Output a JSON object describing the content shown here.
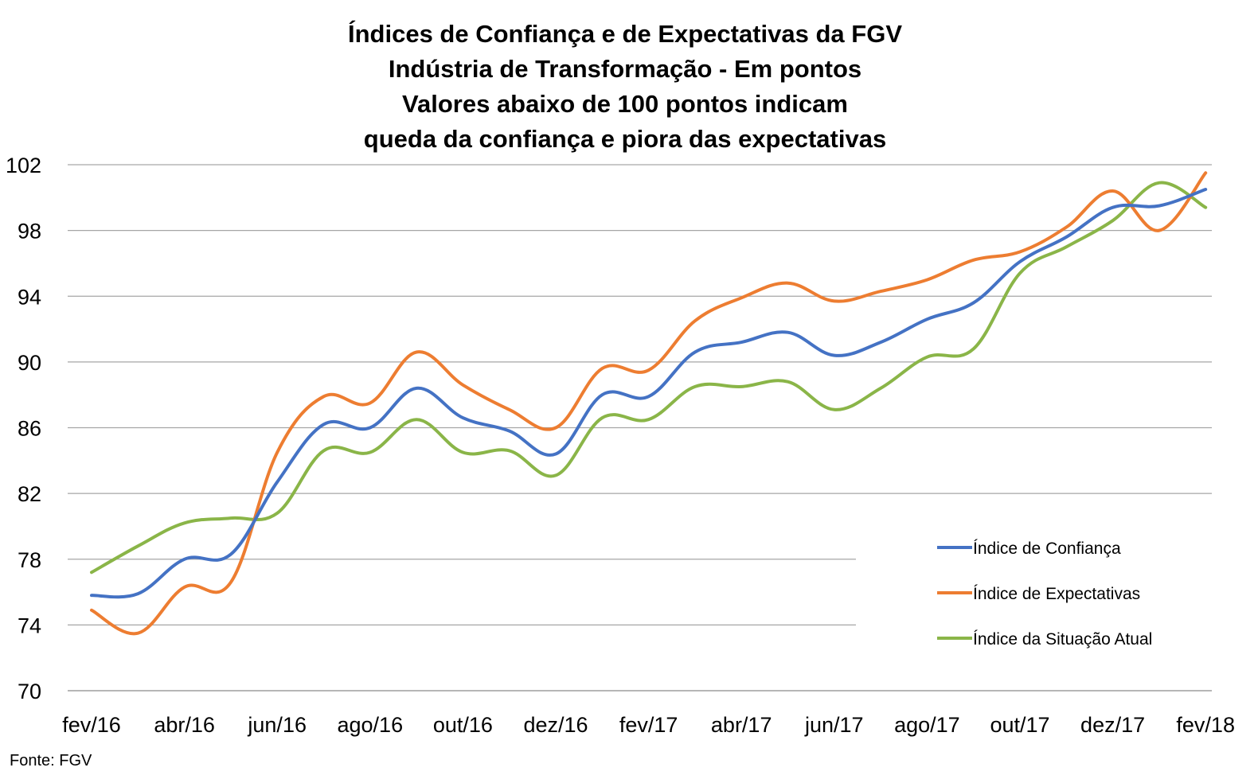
{
  "chart_data": {
    "type": "line",
    "title": [
      "Índices de Confiança e de Expectativas da FGV",
      "Indústria de Transformação - Em pontos",
      "Valores abaixo de 100 pontos indicam",
      "queda da confiança e piora das expectativas"
    ],
    "x": [
      "fev/16",
      "mar/16",
      "abr/16",
      "mai/16",
      "jun/16",
      "jul/16",
      "ago/16",
      "set/16",
      "out/16",
      "nov/16",
      "dez/16",
      "jan/17",
      "fev/17",
      "mar/17",
      "abr/17",
      "mai/17",
      "jun/17",
      "jul/17",
      "ago/17",
      "set/17",
      "out/17",
      "nov/17",
      "dez/17",
      "jan/18",
      "fev/18"
    ],
    "x_tick_labels": [
      "fev/16",
      "abr/16",
      "jun/16",
      "ago/16",
      "out/16",
      "dez/16",
      "fev/17",
      "abr/17",
      "jun/17",
      "ago/17",
      "out/17",
      "dez/17",
      "fev/18"
    ],
    "y_ticks": [
      70,
      74,
      78,
      82,
      86,
      90,
      94,
      98,
      102
    ],
    "ylim": [
      70,
      102
    ],
    "grid": true,
    "legend_position": "right",
    "series": [
      {
        "name": "Índice de Confiança",
        "color": "#4472C4",
        "values": [
          75.8,
          75.9,
          78.0,
          78.3,
          82.7,
          86.2,
          86.0,
          88.4,
          86.6,
          85.8,
          84.4,
          88.0,
          87.9,
          90.6,
          91.2,
          91.8,
          90.4,
          91.2,
          92.6,
          93.6,
          96.1,
          97.6,
          99.4,
          99.5,
          100.5
        ]
      },
      {
        "name": "Índice de Expectativas",
        "color": "#ED7D31",
        "values": [
          74.9,
          73.5,
          76.3,
          76.6,
          84.5,
          87.9,
          87.5,
          90.6,
          88.6,
          87.1,
          86.0,
          89.6,
          89.5,
          92.5,
          93.9,
          94.8,
          93.7,
          94.3,
          95.0,
          96.2,
          96.7,
          98.2,
          100.4,
          98.0,
          101.5
        ]
      },
      {
        "name": "Índice da Situação Atual",
        "color": "#8AB548",
        "values": [
          77.2,
          78.8,
          80.2,
          80.5,
          80.8,
          84.6,
          84.5,
          86.5,
          84.5,
          84.6,
          83.1,
          86.6,
          86.5,
          88.5,
          88.5,
          88.8,
          87.1,
          88.4,
          90.3,
          90.8,
          95.4,
          97.0,
          98.6,
          100.9,
          99.4
        ]
      }
    ],
    "source": "Fonte: FGV"
  }
}
